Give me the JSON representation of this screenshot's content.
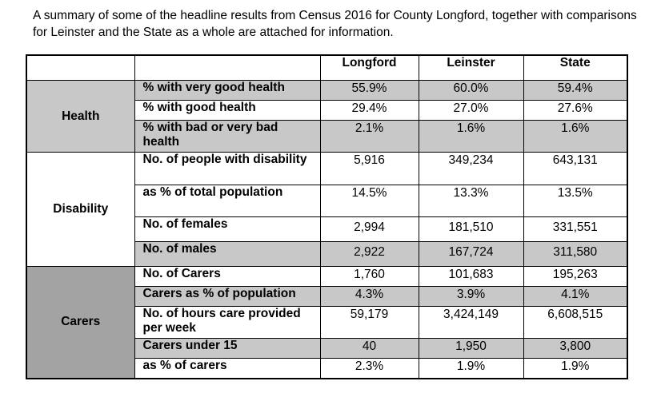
{
  "intro": "A summary of some of the headline results from Census 2016 for County Longford, together with comparisons for Leinster and the State as a whole are attached for information.",
  "columns": [
    "Longford",
    "Leinster",
    "State"
  ],
  "groups": {
    "health": {
      "name": "Health",
      "rows": [
        {
          "label": "% with very good health",
          "values": [
            "55.9%",
            "60.0%",
            "59.4%"
          ]
        },
        {
          "label": "% with good health",
          "values": [
            "29.4%",
            "27.0%",
            "27.6%"
          ]
        },
        {
          "label": "% with bad or very bad health",
          "values": [
            "2.1%",
            "1.6%",
            "1.6%"
          ]
        }
      ]
    },
    "disability": {
      "name": "Disability",
      "rows": [
        {
          "label": "No. of people with disability",
          "values": [
            "5,916",
            "349,234",
            "643,131"
          ]
        },
        {
          "label": "as % of total population",
          "values": [
            "14.5%",
            "13.3%",
            "13.5%"
          ]
        },
        {
          "label": "No. of females",
          "values": [
            "2,994",
            "181,510",
            "331,551"
          ]
        },
        {
          "label": "No. of males",
          "values": [
            "2,922",
            "167,724",
            "311,580"
          ]
        }
      ]
    },
    "carers": {
      "name": "Carers",
      "rows": [
        {
          "label": "No. of Carers",
          "values": [
            "1,760",
            "101,683",
            "195,263"
          ]
        },
        {
          "label": "Carers as % of population",
          "values": [
            "4.3%",
            "3.9%",
            "4.1%"
          ]
        },
        {
          "label": "No. of hours care provided per week",
          "values": [
            "59,179",
            "3,424,149",
            "6,608,515"
          ]
        },
        {
          "label": "Carers under 15",
          "values": [
            "40",
            "1,950",
            "3,800"
          ]
        },
        {
          "label": "as % of carers",
          "values": [
            "2.3%",
            "1.9%",
            "1.9%"
          ]
        }
      ]
    }
  },
  "colors": {
    "shade": "#c8c8c8",
    "dark_shade": "#a3a3a3",
    "border": "#000000"
  }
}
